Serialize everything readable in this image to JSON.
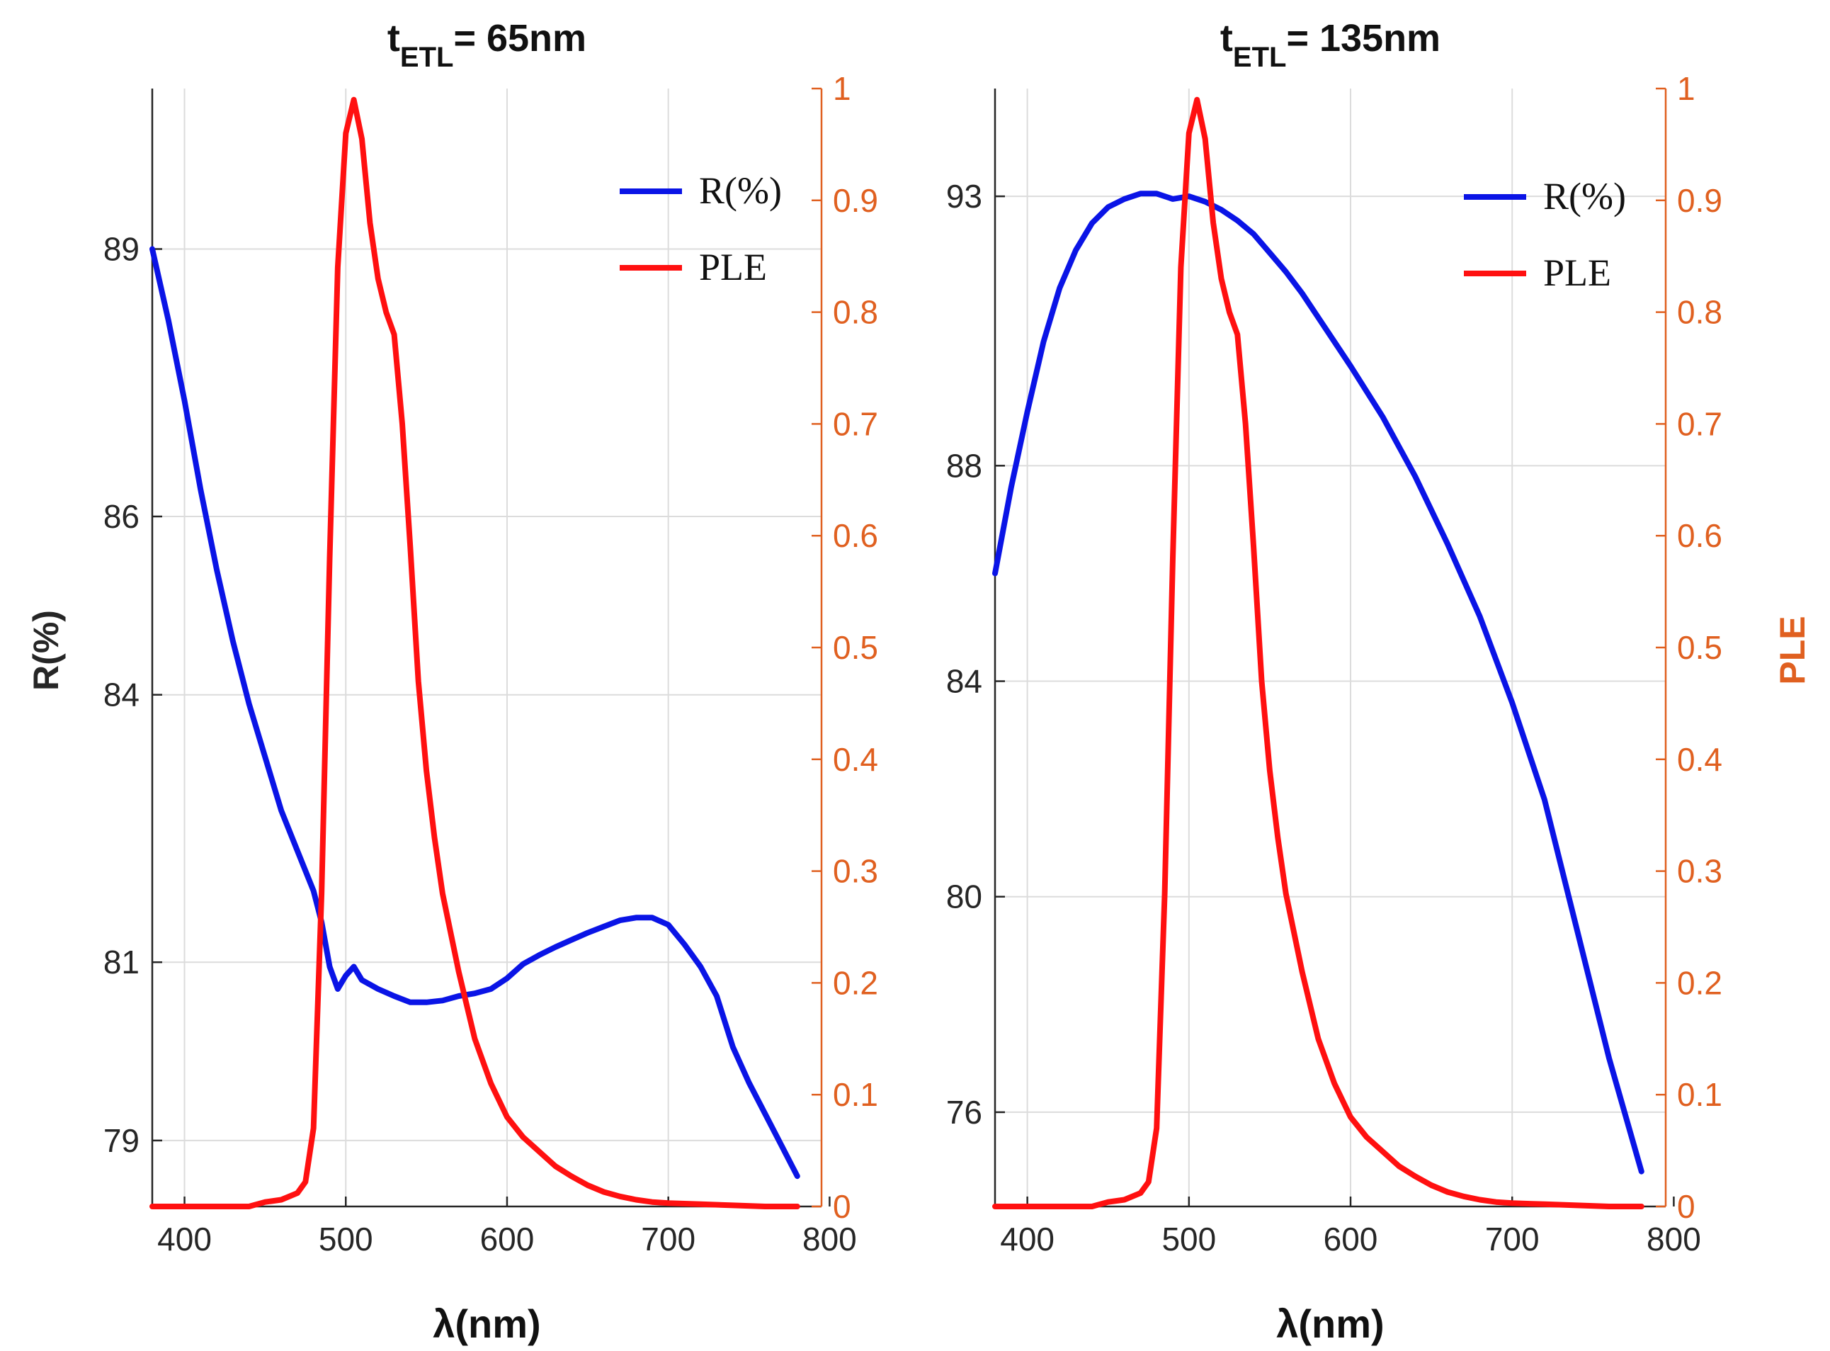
{
  "colors": {
    "r_line": "#0a14e6",
    "ple_line": "#ff1010",
    "ple_axis": "#e06020",
    "grid": "#dcdcdc",
    "axis": "#262626"
  },
  "figure_labels": {
    "left_ylabel": "R(%)",
    "right_ylabel": "PLE"
  },
  "chart_data": [
    {
      "type": "line",
      "title": "t",
      "title_sub": "ETL",
      "title_rest": "= 65nm",
      "xlabel": "λ(nm)",
      "ylabel": "R(%)",
      "y2label": "PLE",
      "xlim": [
        380,
        795
      ],
      "ylim": [
        78.26,
        90.8
      ],
      "y2lim": [
        0,
        1.0
      ],
      "xticks": [
        400,
        500,
        600,
        700,
        800
      ],
      "yticks": [
        79,
        81,
        84,
        86,
        89
      ],
      "y2ticks": [
        0,
        0.1,
        0.2,
        0.3,
        0.4,
        0.5,
        0.6,
        0.7,
        0.8,
        0.9,
        1
      ],
      "grid": true,
      "legend_position": "top-right",
      "series": [
        {
          "name": "R(%)",
          "axis": "left",
          "x": [
            380,
            390,
            400,
            410,
            420,
            430,
            440,
            450,
            460,
            470,
            480,
            485,
            490,
            495,
            500,
            505,
            510,
            520,
            530,
            540,
            550,
            560,
            570,
            580,
            590,
            600,
            610,
            620,
            630,
            640,
            650,
            660,
            670,
            680,
            690,
            700,
            710,
            720,
            730,
            740,
            750,
            760,
            770,
            780
          ],
          "values": [
            89.0,
            88.2,
            87.3,
            86.3,
            85.4,
            84.6,
            83.9,
            83.3,
            82.7,
            82.25,
            81.8,
            81.45,
            80.95,
            80.7,
            80.85,
            80.95,
            80.8,
            80.7,
            80.62,
            80.55,
            80.55,
            80.57,
            80.62,
            80.65,
            80.7,
            80.82,
            80.98,
            81.08,
            81.17,
            81.25,
            81.33,
            81.4,
            81.47,
            81.5,
            81.5,
            81.42,
            81.2,
            80.95,
            80.62,
            80.05,
            79.65,
            79.3,
            78.95,
            78.6
          ]
        },
        {
          "name": "PLE",
          "axis": "right",
          "x": [
            380,
            440,
            450,
            460,
            470,
            475,
            480,
            485,
            490,
            495,
            500,
            505,
            510,
            515,
            520,
            525,
            530,
            535,
            540,
            545,
            550,
            555,
            560,
            570,
            580,
            590,
            600,
            610,
            620,
            630,
            640,
            650,
            660,
            670,
            680,
            690,
            700,
            720,
            740,
            760,
            780
          ],
          "values": [
            0,
            0,
            0.004,
            0.006,
            0.012,
            0.022,
            0.07,
            0.28,
            0.58,
            0.84,
            0.96,
            0.99,
            0.955,
            0.88,
            0.83,
            0.8,
            0.78,
            0.7,
            0.59,
            0.47,
            0.39,
            0.33,
            0.28,
            0.21,
            0.15,
            0.11,
            0.08,
            0.062,
            0.049,
            0.036,
            0.027,
            0.019,
            0.013,
            0.009,
            0.006,
            0.004,
            0.003,
            0.002,
            0.001,
            0,
            0
          ]
        }
      ]
    },
    {
      "type": "line",
      "title": "t",
      "title_sub": "ETL",
      "title_rest": "= 135nm",
      "xlabel": "λ(nm)",
      "ylabel": "",
      "y2label": "PLE",
      "xlim": [
        380,
        795
      ],
      "ylim": [
        74.25,
        95.0
      ],
      "y2lim": [
        0,
        1.0
      ],
      "xticks": [
        400,
        500,
        600,
        700,
        800
      ],
      "yticks": [
        76,
        80,
        84,
        88,
        93
      ],
      "y2ticks": [
        0,
        0.1,
        0.2,
        0.3,
        0.4,
        0.5,
        0.6,
        0.7,
        0.8,
        0.9,
        1
      ],
      "grid": true,
      "legend_position": "top-right",
      "series": [
        {
          "name": "R(%)",
          "axis": "left",
          "x": [
            380,
            390,
            400,
            410,
            420,
            430,
            440,
            450,
            460,
            470,
            480,
            490,
            500,
            510,
            520,
            530,
            540,
            550,
            560,
            570,
            580,
            590,
            600,
            620,
            640,
            660,
            680,
            700,
            720,
            740,
            760,
            780
          ],
          "values": [
            86.0,
            87.6,
            89.0,
            90.3,
            91.3,
            92.0,
            92.5,
            92.8,
            92.95,
            93.05,
            93.05,
            92.95,
            93.0,
            92.9,
            92.75,
            92.55,
            92.3,
            91.95,
            91.6,
            91.2,
            90.75,
            90.3,
            89.85,
            88.9,
            87.8,
            86.55,
            85.2,
            83.6,
            81.8,
            79.4,
            77.0,
            74.9
          ]
        },
        {
          "name": "PLE",
          "axis": "right",
          "x": [
            380,
            440,
            450,
            460,
            470,
            475,
            480,
            485,
            490,
            495,
            500,
            505,
            510,
            515,
            520,
            525,
            530,
            535,
            540,
            545,
            550,
            555,
            560,
            570,
            580,
            590,
            600,
            610,
            620,
            630,
            640,
            650,
            660,
            670,
            680,
            690,
            700,
            720,
            740,
            760,
            780
          ],
          "values": [
            0,
            0,
            0.004,
            0.006,
            0.012,
            0.022,
            0.07,
            0.28,
            0.58,
            0.84,
            0.96,
            0.99,
            0.955,
            0.88,
            0.83,
            0.8,
            0.78,
            0.7,
            0.59,
            0.47,
            0.39,
            0.33,
            0.28,
            0.21,
            0.15,
            0.11,
            0.08,
            0.062,
            0.049,
            0.036,
            0.027,
            0.019,
            0.013,
            0.009,
            0.006,
            0.004,
            0.003,
            0.002,
            0.001,
            0,
            0
          ]
        }
      ]
    }
  ]
}
